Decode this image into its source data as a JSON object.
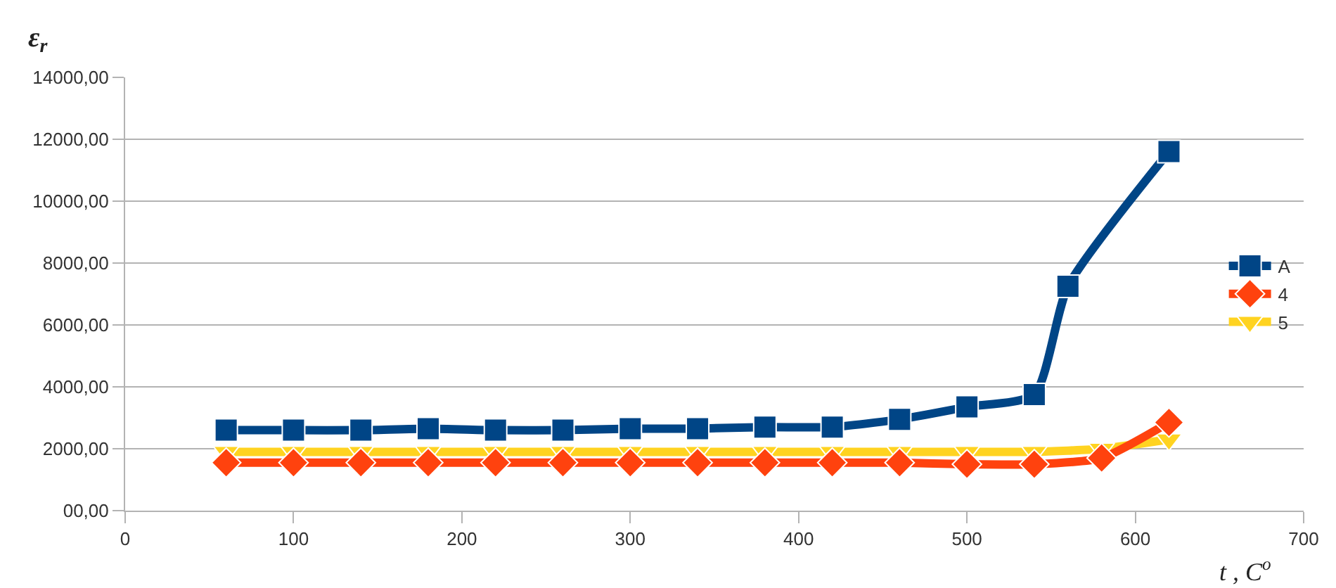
{
  "chart_data": {
    "type": "line",
    "xlabel": "t , C$^{o}$",
    "ylabel": "ε$_{r}$",
    "xlim": [
      0,
      700
    ],
    "xticks": [
      0,
      100,
      200,
      300,
      400,
      500,
      600,
      700
    ],
    "ylim": [
      0,
      14000
    ],
    "yticks": [
      {
        "value": 0,
        "label": "00,00"
      },
      {
        "value": 2000,
        "label": "2000,00"
      },
      {
        "value": 4000,
        "label": "4000,00"
      },
      {
        "value": 6000,
        "label": "6000,00"
      },
      {
        "value": 8000,
        "label": "8000,00"
      },
      {
        "value": 10000,
        "label": "10000,00"
      },
      {
        "value": 12000,
        "label": "12000,00"
      },
      {
        "value": 14000,
        "label": "14000,00"
      }
    ],
    "grid": "y",
    "legend": "right",
    "series": [
      {
        "name": "A",
        "color": "#004586",
        "marker": "square",
        "x": [
          60,
          100,
          140,
          180,
          220,
          260,
          300,
          340,
          380,
          420,
          460,
          500,
          540,
          560,
          620
        ],
        "values": [
          2600,
          2600,
          2600,
          2650,
          2600,
          2600,
          2650,
          2650,
          2700,
          2700,
          2950,
          3350,
          3750,
          7250,
          11600
        ]
      },
      {
        "name": "4",
        "color": "#ff420e",
        "marker": "diamond",
        "x": [
          60,
          100,
          140,
          180,
          220,
          260,
          300,
          340,
          380,
          420,
          460,
          500,
          540,
          580,
          620
        ],
        "values": [
          1550,
          1550,
          1550,
          1550,
          1550,
          1550,
          1550,
          1550,
          1550,
          1550,
          1550,
          1500,
          1500,
          1700,
          2850
        ]
      },
      {
        "name": "5",
        "color": "#ffd320",
        "marker": "triangle",
        "x": [
          60,
          100,
          140,
          180,
          220,
          260,
          300,
          340,
          380,
          420,
          460,
          500,
          540,
          580,
          620
        ],
        "values": [
          1900,
          1900,
          1900,
          1900,
          1900,
          1900,
          1900,
          1900,
          1900,
          1900,
          1900,
          1900,
          1900,
          2000,
          2300
        ]
      }
    ]
  }
}
